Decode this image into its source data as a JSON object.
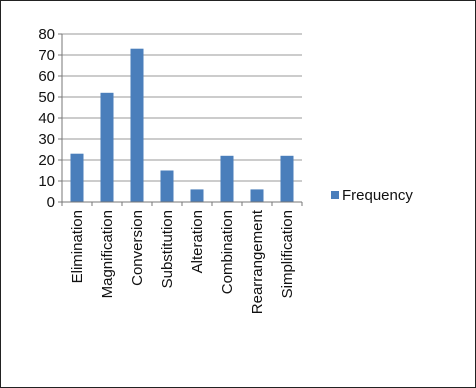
{
  "chart_data": {
    "type": "bar",
    "categories": [
      "Elimination",
      "Magnification",
      "Conversion",
      "Substitution",
      "Alteration",
      "Combination",
      "Rearrangement",
      "Simplification"
    ],
    "series": [
      {
        "name": "Frequency",
        "values": [
          23,
          52,
          73,
          15,
          6,
          22,
          6,
          22
        ],
        "color": "#4a7ebb"
      }
    ],
    "ylim": [
      0,
      80
    ],
    "yticks": [
      0,
      10,
      20,
      30,
      40,
      50,
      60,
      70,
      80
    ],
    "grid": true,
    "legend": "right"
  }
}
